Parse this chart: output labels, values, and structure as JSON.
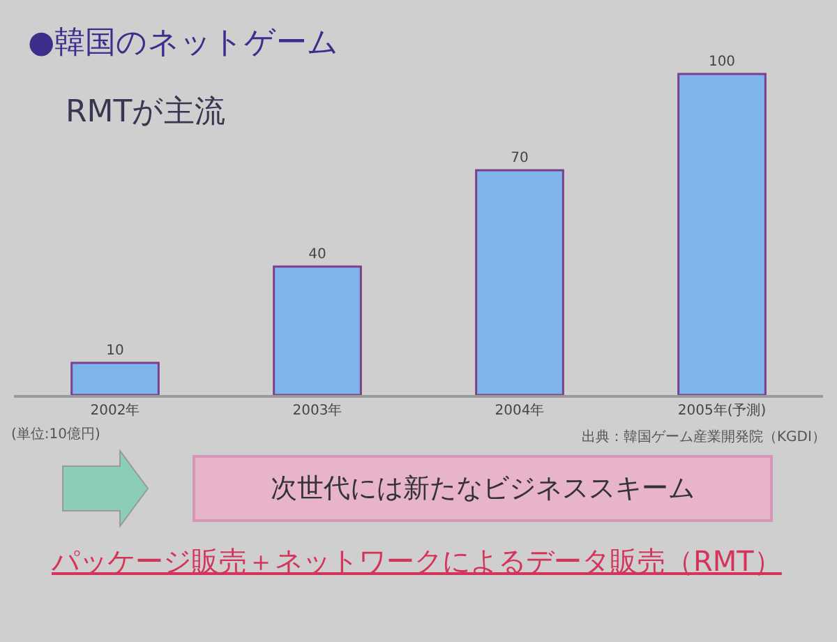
{
  "chart_data": {
    "type": "bar",
    "title": "●韓国のネットゲーム",
    "subtitle": "RMTが主流",
    "categories": [
      "2002年",
      "2003年",
      "2004年",
      "2005年(予測)"
    ],
    "values": [
      10,
      40,
      70,
      100
    ],
    "color": "#80b4ec",
    "data_labels": true,
    "annotations": [
      "(単位:10億円)",
      "出典：韓国ゲーム産業開発院（KGDI）",
      "次世代には新たなビジネススキーム",
      "パッケージ販売＋ネットワークによるデータ販売（RMT）"
    ]
  }
}
